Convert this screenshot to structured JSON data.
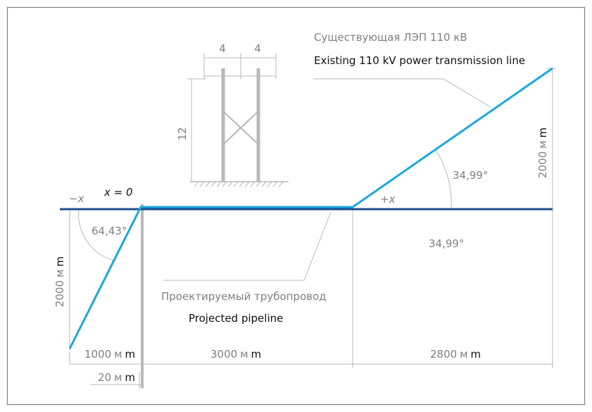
{
  "colors": {
    "frame": "#7f7f7f",
    "axis": "#1f4e8c",
    "pipeline": "#1aa7e0",
    "dim_gray": "#b8b8b8",
    "text_gray": "#7f7f7f",
    "text_dark": "#111111"
  },
  "tower": {
    "dim_left": "4",
    "dim_right": "4",
    "dim_height": "12"
  },
  "power_line": {
    "label_ru": "Существующая ЛЭП 110 кВ",
    "label_en": "Existing 110 kV power transmission line"
  },
  "pipeline": {
    "label_ru": "Проектируемый трубопровод",
    "label_en": "Projected pipeline"
  },
  "axis": {
    "minus_x": "−x",
    "plus_x": "+x",
    "x_zero": "x = 0"
  },
  "angles": {
    "left": "64,43°",
    "right_upper": "34,99°",
    "right_lower": "34,99°"
  },
  "dimensions": {
    "left_height": {
      "num": "2000",
      "unit_ru": "м",
      "unit_en": "m"
    },
    "right_height": {
      "num": "2000",
      "unit_ru": "м",
      "unit_en": "m"
    },
    "seg_1000": {
      "num": "1000",
      "unit_ru": "м",
      "unit_en": "m"
    },
    "seg_3000": {
      "num": "3000",
      "unit_ru": "м",
      "unit_en": "m"
    },
    "seg_2800": {
      "num": "2800",
      "unit_ru": "м",
      "unit_en": "m"
    },
    "seg_20": {
      "num": "20",
      "unit_ru": "м",
      "unit_en": "m"
    }
  }
}
